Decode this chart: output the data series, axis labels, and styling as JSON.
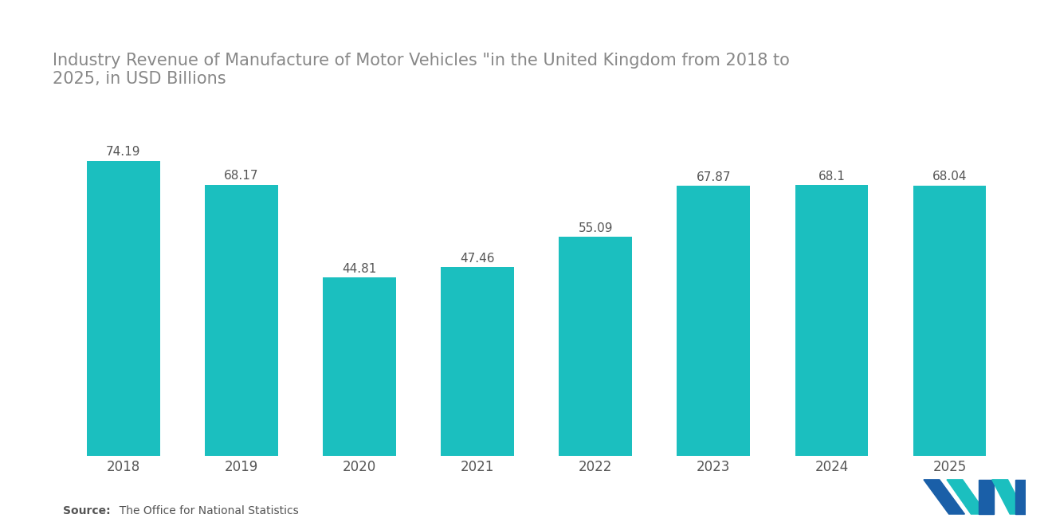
{
  "title_line1": "Industry Revenue of Manufacture of Motor Vehicles \"in the United Kingdom from 2018 to",
  "title_line2": "2025, in USD Billions",
  "years": [
    "2018",
    "2019",
    "2020",
    "2021",
    "2022",
    "2023",
    "2024",
    "2025"
  ],
  "values": [
    74.19,
    68.17,
    44.81,
    47.46,
    55.09,
    67.87,
    68.1,
    68.04
  ],
  "bar_color": "#1BBFBF",
  "background_color": "#ffffff",
  "label_color": "#555555",
  "title_color": "#888888",
  "source_bold": "Source:",
  "source_rest": "  The Office for National Statistics",
  "title_fontsize": 15,
  "label_fontsize": 11,
  "tick_fontsize": 12,
  "source_fontsize": 10,
  "ylim": [
    0,
    88
  ],
  "bar_width": 0.62
}
